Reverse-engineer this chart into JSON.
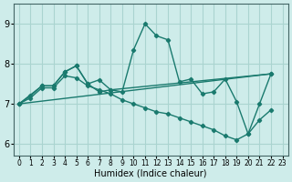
{
  "xlabel": "Humidex (Indice chaleur)",
  "xlim": [
    -0.5,
    23.5
  ],
  "ylim": [
    5.7,
    9.5
  ],
  "yticks": [
    6,
    7,
    8,
    9
  ],
  "xticks": [
    0,
    1,
    2,
    3,
    4,
    5,
    6,
    7,
    8,
    9,
    10,
    11,
    12,
    13,
    14,
    15,
    16,
    17,
    18,
    19,
    20,
    21,
    22,
    23
  ],
  "bg_color": "#ceecea",
  "grid_color": "#aad4d0",
  "line_color": "#1a7a6e",
  "curve1_x": [
    0,
    1,
    2,
    3,
    4,
    5,
    6,
    7,
    8,
    9,
    10,
    11,
    12,
    13,
    14,
    15,
    16,
    17,
    18,
    19,
    20,
    21,
    22
  ],
  "curve1_y": [
    7.0,
    7.2,
    7.45,
    7.45,
    7.8,
    7.95,
    7.5,
    7.3,
    7.35,
    7.3,
    8.35,
    9.0,
    8.7,
    8.6,
    7.55,
    7.62,
    7.25,
    7.3,
    7.62,
    7.05,
    6.25,
    7.0,
    7.75
  ],
  "curve2_x": [
    0,
    2,
    3,
    4,
    5,
    6,
    7,
    8,
    22
  ],
  "curve2_y": [
    7.0,
    7.45,
    7.45,
    7.8,
    7.95,
    7.5,
    7.6,
    7.35,
    7.75
  ],
  "curve3_x": [
    0,
    22
  ],
  "curve3_y": [
    7.0,
    7.75
  ],
  "curve4_x": [
    0,
    1,
    2,
    3,
    4,
    5,
    6,
    7,
    8,
    9,
    10,
    11,
    12,
    13,
    14,
    15,
    16,
    17,
    18,
    19,
    20,
    21,
    22
  ],
  "curve4_y": [
    7.0,
    7.15,
    7.4,
    7.4,
    7.7,
    7.65,
    7.45,
    7.35,
    7.25,
    7.1,
    7.0,
    6.9,
    6.8,
    6.75,
    6.65,
    6.55,
    6.45,
    6.35,
    6.2,
    6.1,
    6.25,
    6.6,
    6.85
  ]
}
